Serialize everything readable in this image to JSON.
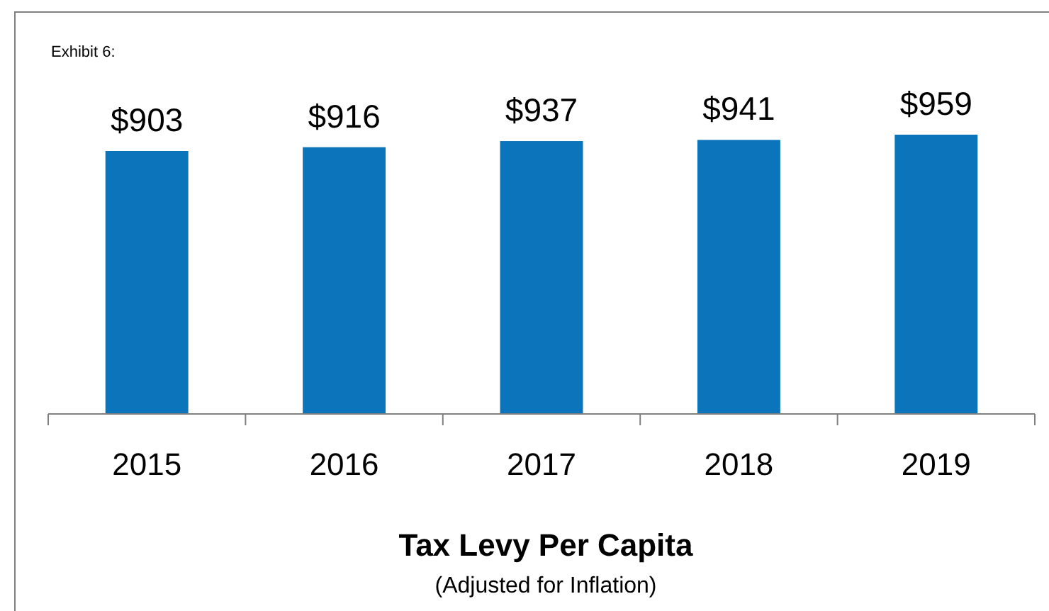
{
  "chart_data": {
    "type": "bar",
    "title": "Tax Levy Per Capita",
    "subtitle": "(Adjusted for Inflation)",
    "annotations": [
      "Exhibit 6:"
    ],
    "categories": [
      "2015",
      "2016",
      "2017",
      "2018",
      "2019"
    ],
    "values": [
      903,
      916,
      937,
      941,
      959
    ],
    "value_labels": [
      "$903",
      "$916",
      "$937",
      "$941",
      "$959"
    ],
    "color": "#0b74bb",
    "tick_labels": "x"
  }
}
